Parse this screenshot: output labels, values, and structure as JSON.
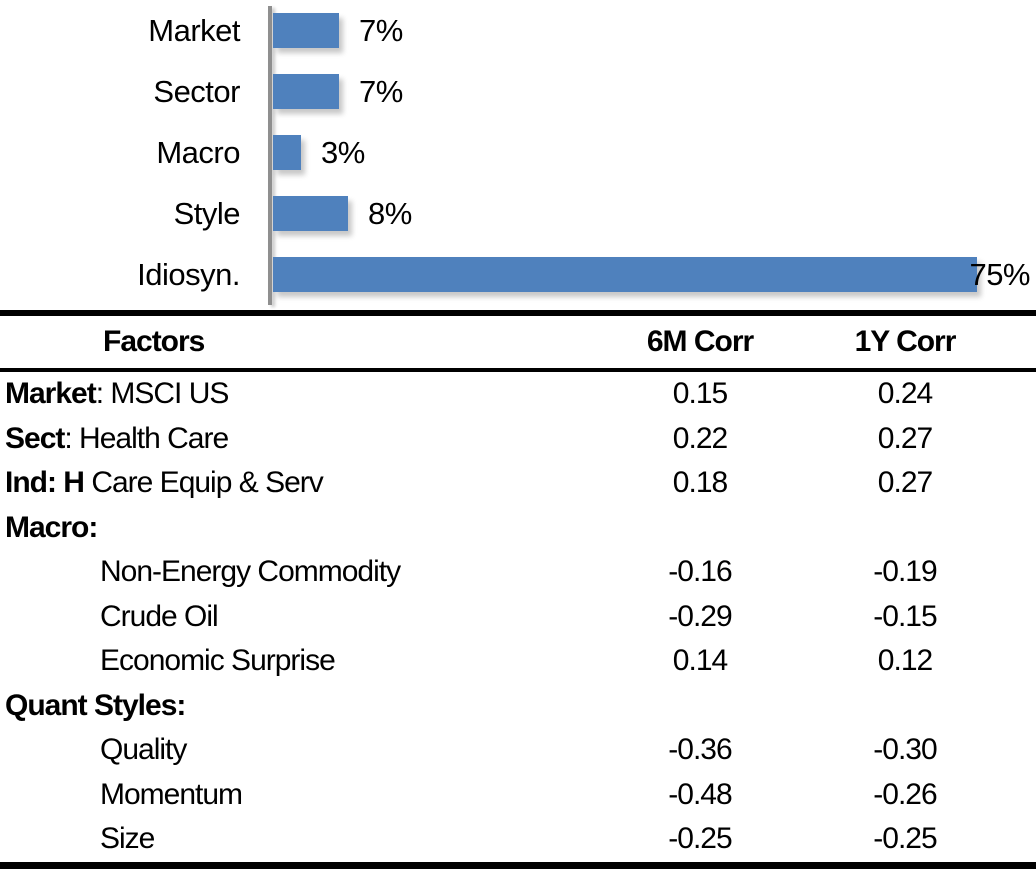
{
  "chart_data": {
    "type": "bar",
    "orientation": "horizontal",
    "title": "",
    "categories": [
      "Market",
      "Sector",
      "Macro",
      "Style",
      "Idiosyn."
    ],
    "values": [
      7,
      7,
      3,
      8,
      75
    ],
    "data_labels": [
      "7%",
      "7%",
      "3%",
      "8%",
      "75%"
    ],
    "xlim": [
      0,
      80
    ],
    "grid": false,
    "legend": false,
    "bar_color": "#4f81bd",
    "axis_color": "#8f8f8f",
    "label_color": "#000000"
  },
  "table": {
    "headers": {
      "factors": "Factors",
      "corr6m": "6M Corr",
      "corr1y": "1Y Corr"
    },
    "rows": [
      {
        "prefix": "Market",
        "label": ": MSCI US",
        "indent": false,
        "corr6m": "0.15",
        "corr1y": "0.24"
      },
      {
        "prefix": "Sect",
        "label": ": Health Care",
        "indent": false,
        "corr6m": "0.22",
        "corr1y": "0.27"
      },
      {
        "prefix": "Ind: H",
        "label": " Care Equip & Serv",
        "indent": false,
        "corr6m": "0.18",
        "corr1y": "0.27"
      },
      {
        "prefix": "Macro:",
        "label": "",
        "indent": false,
        "corr6m": "",
        "corr1y": ""
      },
      {
        "prefix": "",
        "label": "Non-Energy Commodity",
        "indent": true,
        "corr6m": "-0.16",
        "corr1y": "-0.19"
      },
      {
        "prefix": "",
        "label": "Crude Oil",
        "indent": true,
        "corr6m": "-0.29",
        "corr1y": "-0.15"
      },
      {
        "prefix": "",
        "label": "Economic Surprise",
        "indent": true,
        "corr6m": "0.14",
        "corr1y": "0.12"
      },
      {
        "prefix": "Quant Styles:",
        "label": "",
        "indent": false,
        "corr6m": "",
        "corr1y": ""
      },
      {
        "prefix": "",
        "label": "Quality",
        "indent": true,
        "corr6m": "-0.36",
        "corr1y": "-0.30"
      },
      {
        "prefix": "",
        "label": "Momentum",
        "indent": true,
        "corr6m": "-0.48",
        "corr1y": "-0.26"
      },
      {
        "prefix": "",
        "label": "Size",
        "indent": true,
        "corr6m": "-0.25",
        "corr1y": "-0.25"
      }
    ]
  }
}
